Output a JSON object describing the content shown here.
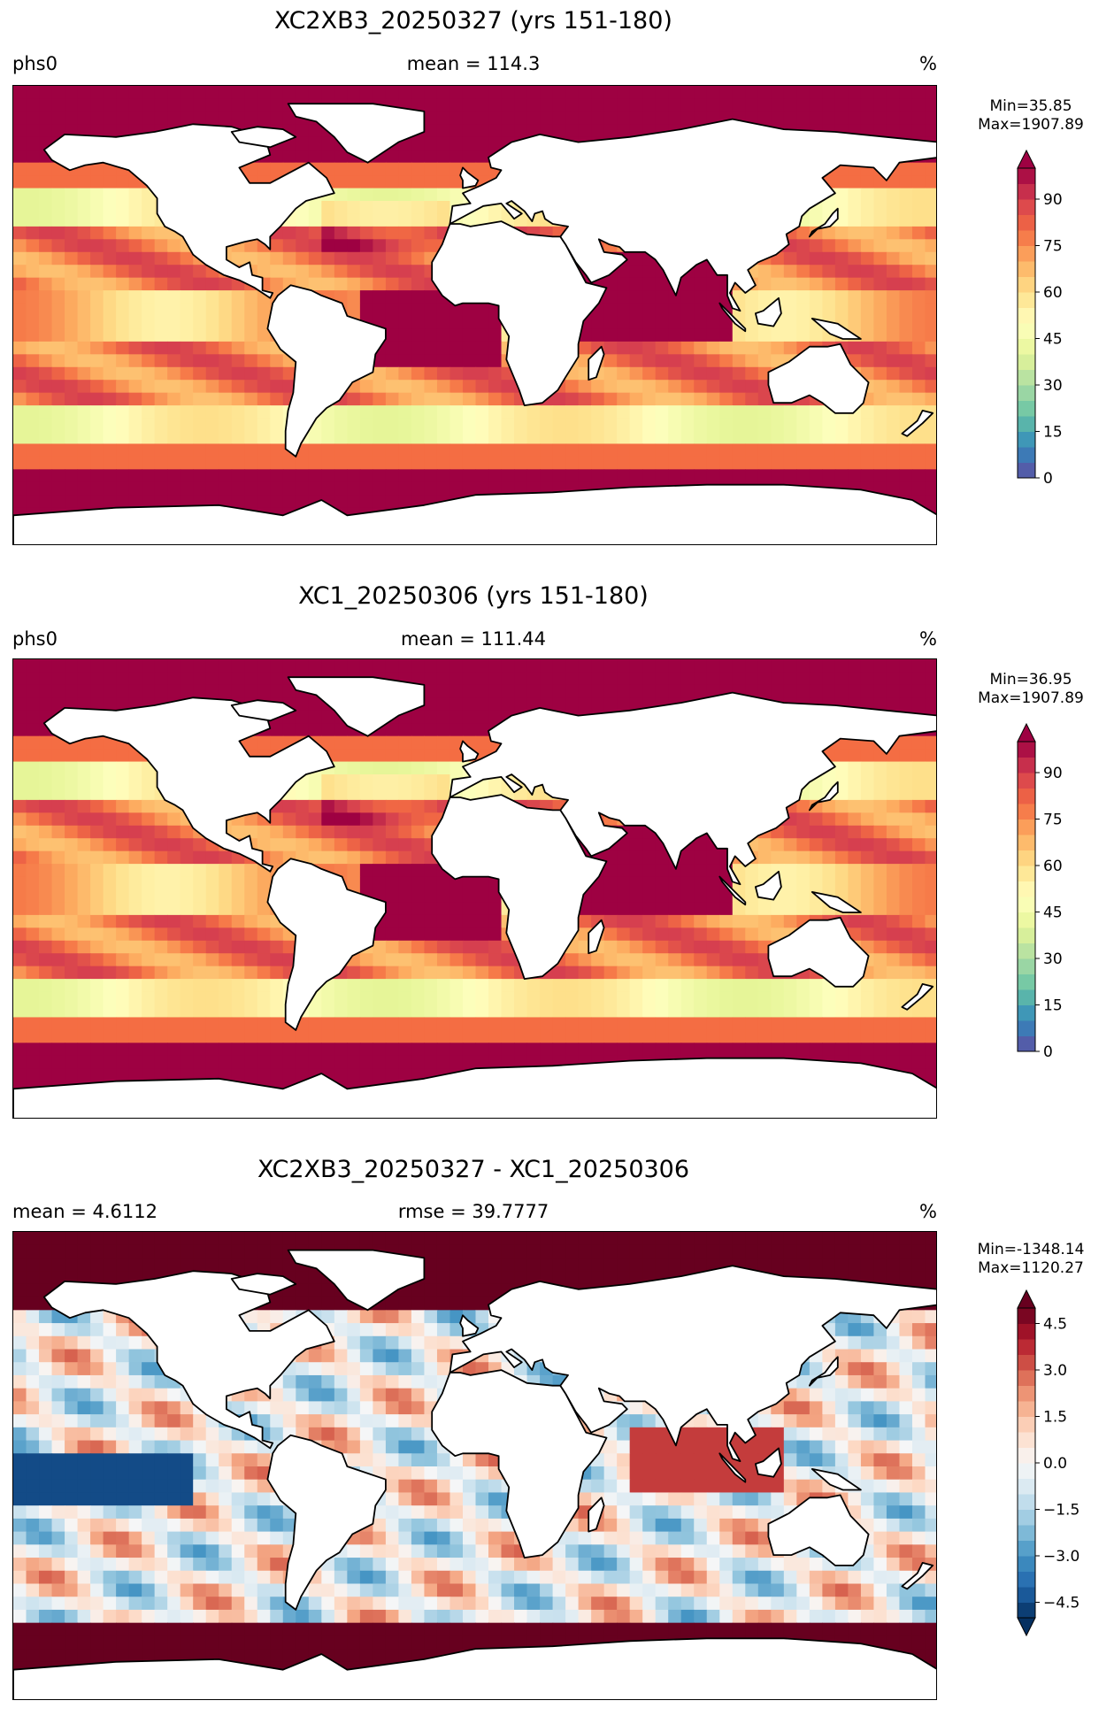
{
  "panels": [
    {
      "title": "XC2XB3_20250327 (yrs 151-180)",
      "left": "phs0",
      "center": "mean = 114.3",
      "right": "%",
      "min_text": "Min=35.85",
      "max_text": "Max=1907.89",
      "kind": "sequential"
    },
    {
      "title": "XC1_20250306 (yrs 151-180)",
      "left": "phs0",
      "center": "mean = 111.44",
      "right": "%",
      "min_text": "Min=36.95",
      "max_text": "Max=1907.89",
      "kind": "sequential"
    },
    {
      "title": "XC2XB3_20250327 - XC1_20250306",
      "left": "mean = 4.6112",
      "center": "rmse = 39.7777",
      "right": "%",
      "min_text": "Min=-1348.14",
      "max_text": "Max=1120.27",
      "kind": "diverging"
    }
  ],
  "chart_data": [
    {
      "type": "heatmap",
      "title": "XC2XB3_20250327 (yrs 151-180)",
      "variable": "phs0",
      "units": "%",
      "mean": 114.3,
      "min": 35.85,
      "max": 1907.89,
      "colorbar": {
        "ticks": [
          0,
          15,
          30,
          45,
          60,
          75,
          90
        ],
        "range": [
          0,
          100
        ],
        "extend": "max",
        "colormap": "Spectral_r"
      }
    },
    {
      "type": "heatmap",
      "title": "XC1_20250306 (yrs 151-180)",
      "variable": "phs0",
      "units": "%",
      "mean": 111.44,
      "min": 36.95,
      "max": 1907.89,
      "colorbar": {
        "ticks": [
          0,
          15,
          30,
          45,
          60,
          75,
          90
        ],
        "range": [
          0,
          100
        ],
        "extend": "max",
        "colormap": "Spectral_r"
      }
    },
    {
      "type": "heatmap",
      "title": "XC2XB3_20250327 - XC1_20250306",
      "units": "%",
      "mean": 4.6112,
      "rmse": 39.7777,
      "min": -1348.14,
      "max": 1120.27,
      "colorbar": {
        "ticks": [
          -4.5,
          -3.0,
          -1.5,
          0.0,
          1.5,
          3.0,
          4.5
        ],
        "tick_labels": [
          "−4.5",
          "−3.0",
          "−1.5",
          "0.0",
          "1.5",
          "3.0",
          "4.5"
        ],
        "range": [
          -5,
          5
        ],
        "extend": "both",
        "colormap": "RdBu_r"
      }
    }
  ]
}
